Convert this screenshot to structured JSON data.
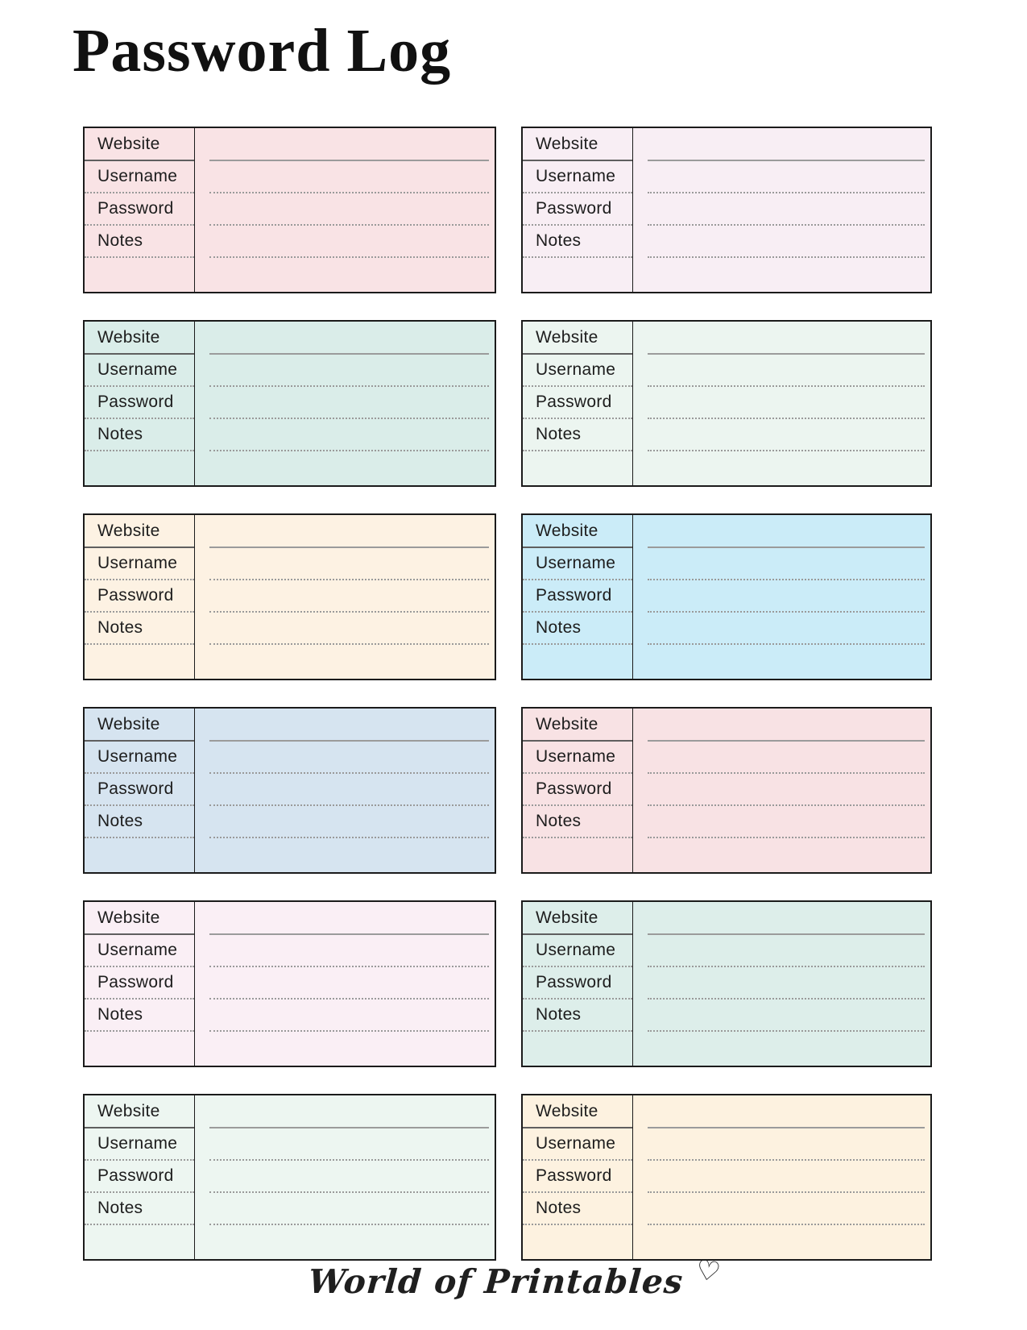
{
  "title": "Password Log",
  "card_labels": {
    "website": "Website",
    "username": "Username",
    "password": "Password",
    "notes": "Notes"
  },
  "cards": [
    {
      "name": "password-card-1",
      "bg": "#f9e3e5"
    },
    {
      "name": "password-card-2",
      "bg": "#f8eef4"
    },
    {
      "name": "password-card-3",
      "bg": "#daede9"
    },
    {
      "name": "password-card-4",
      "bg": "#ecf5f0"
    },
    {
      "name": "password-card-5",
      "bg": "#fdf2e3"
    },
    {
      "name": "password-card-6",
      "bg": "#cbecf8"
    },
    {
      "name": "password-card-7",
      "bg": "#d6e4f0"
    },
    {
      "name": "password-card-8",
      "bg": "#f8e2e4"
    },
    {
      "name": "password-card-9",
      "bg": "#faeff5"
    },
    {
      "name": "password-card-10",
      "bg": "#ddeeea"
    },
    {
      "name": "password-card-11",
      "bg": "#edf6f1"
    },
    {
      "name": "password-card-12",
      "bg": "#fdf2e0"
    }
  ],
  "footer": {
    "brand": "World of Printables",
    "heart_icon": "♡"
  },
  "colors": {
    "card_border": "#1b1b1b",
    "line_solid": "#9b9b9b",
    "line_dotted": "#9a9a9a",
    "label_text": "#1d1d1d",
    "title_text": "#111111"
  }
}
